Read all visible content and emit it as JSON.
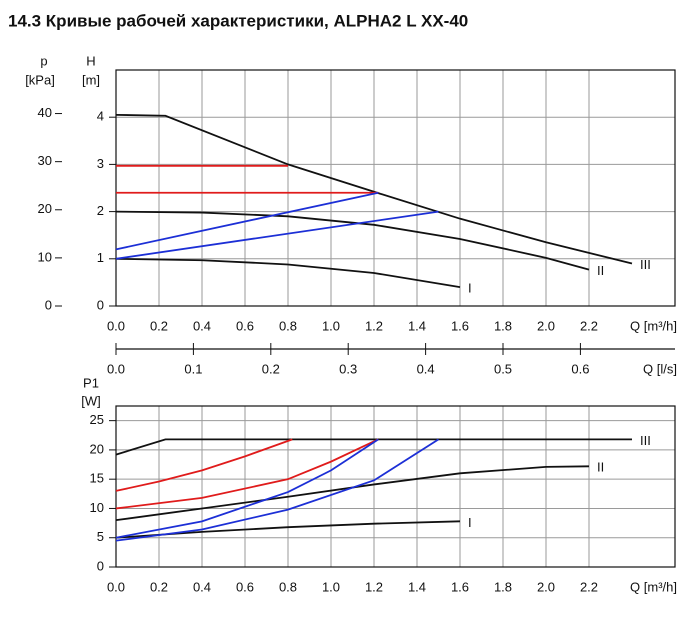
{
  "title": "14.3 Кривые рабочей характеристики, ALPHA2 L XX-40",
  "chart_data": [
    {
      "type": "line",
      "xlabel": "Q [m³/h]",
      "ylabel": "H",
      "yunit": "[m]",
      "y2label": "p",
      "y2unit": "[kPa]",
      "xlim": [
        0,
        2.6
      ],
      "xticks": [
        {
          "value": 0,
          "label": "0.0"
        },
        0.2,
        0.4,
        0.6,
        0.8,
        {
          "value": 1,
          "label": "1.0"
        },
        1.2,
        1.4,
        1.6,
        1.8,
        {
          "value": 2,
          "label": "2.0"
        },
        2.2
      ],
      "ylim": [
        0,
        5
      ],
      "yticks": [
        0,
        1,
        2,
        3,
        4
      ],
      "y2lim": [
        0,
        49.05
      ],
      "y2ticks": [
        0,
        10,
        20,
        30,
        40
      ],
      "grid": true,
      "series": [
        {
          "name": "III",
          "color": "#111111",
          "x": [
            0,
            0.23,
            0.8,
            1.2,
            1.6,
            2.0,
            2.4
          ],
          "values": [
            4.05,
            4.03,
            3.0,
            2.42,
            1.85,
            1.35,
            0.9
          ]
        },
        {
          "name": "II",
          "color": "#111111",
          "x": [
            0,
            0.4,
            0.8,
            1.2,
            1.6,
            2.0,
            2.2
          ],
          "values": [
            2.0,
            1.98,
            1.9,
            1.72,
            1.42,
            1.02,
            0.77
          ]
        },
        {
          "name": "I",
          "color": "#111111",
          "x": [
            0,
            0.4,
            0.8,
            1.2,
            1.6
          ],
          "values": [
            1.0,
            0.97,
            0.88,
            0.7,
            0.4
          ]
        },
        {
          "color": "#e01b1b",
          "x": [
            0,
            0.8
          ],
          "values": [
            2.97,
            2.97
          ]
        },
        {
          "color": "#e01b1b",
          "x": [
            0,
            1.22
          ],
          "values": [
            2.4,
            2.4
          ]
        },
        {
          "color": "#1c2fd6",
          "x": [
            0,
            1.22
          ],
          "values": [
            1.2,
            2.4
          ]
        },
        {
          "color": "#1c2fd6",
          "x": [
            0,
            1.5
          ],
          "values": [
            1.0,
            2.0
          ]
        }
      ]
    },
    {
      "type": "axis",
      "xlabel": "Q [l/s]",
      "xlim": [
        0,
        0.7222
      ],
      "xticks": [
        {
          "value": 0,
          "label": "0.0"
        },
        0.1,
        0.2,
        0.3,
        0.4,
        0.5,
        0.6
      ]
    },
    {
      "type": "line",
      "xlabel": "Q [m³/h]",
      "ylabel": "P1",
      "yunit": "[W]",
      "xlim": [
        0,
        2.6
      ],
      "xticks": [
        {
          "value": 0,
          "label": "0.0"
        },
        0.2,
        0.4,
        0.6,
        0.8,
        {
          "value": 1,
          "label": "1.0"
        },
        1.2,
        1.4,
        1.6,
        1.8,
        {
          "value": 2,
          "label": "2.0"
        },
        2.2
      ],
      "ylim": [
        0,
        27.5
      ],
      "yticks": [
        0,
        5,
        10,
        15,
        20,
        25
      ],
      "grid": true,
      "series": [
        {
          "name": "III",
          "color": "#111111",
          "x": [
            0,
            0.23,
            2.4
          ],
          "values": [
            19.2,
            21.8,
            21.8
          ]
        },
        {
          "name": "II",
          "color": "#111111",
          "x": [
            0,
            0.4,
            0.8,
            1.2,
            1.6,
            2.0,
            2.2
          ],
          "values": [
            8.0,
            10.0,
            12.0,
            14.1,
            16.0,
            17.1,
            17.2
          ]
        },
        {
          "name": "I",
          "color": "#111111",
          "x": [
            0,
            0.4,
            0.8,
            1.2,
            1.6
          ],
          "values": [
            5.0,
            6.0,
            6.8,
            7.4,
            7.8
          ]
        },
        {
          "color": "#e01b1b",
          "x": [
            0,
            0.2,
            0.4,
            0.6,
            0.82
          ],
          "values": [
            13.0,
            14.6,
            16.5,
            18.9,
            21.8
          ]
        },
        {
          "color": "#e01b1b",
          "x": [
            0,
            0.4,
            0.8,
            1.0,
            1.22
          ],
          "values": [
            10.0,
            11.8,
            15.0,
            18.0,
            21.8
          ]
        },
        {
          "color": "#1c2fd6",
          "x": [
            0,
            0.4,
            0.8,
            1.0,
            1.22
          ],
          "values": [
            5.0,
            7.8,
            12.8,
            16.5,
            21.8
          ]
        },
        {
          "color": "#1c2fd6",
          "x": [
            0,
            0.4,
            0.8,
            1.2,
            1.5
          ],
          "values": [
            4.5,
            6.4,
            9.8,
            14.8,
            21.8
          ]
        }
      ]
    }
  ]
}
